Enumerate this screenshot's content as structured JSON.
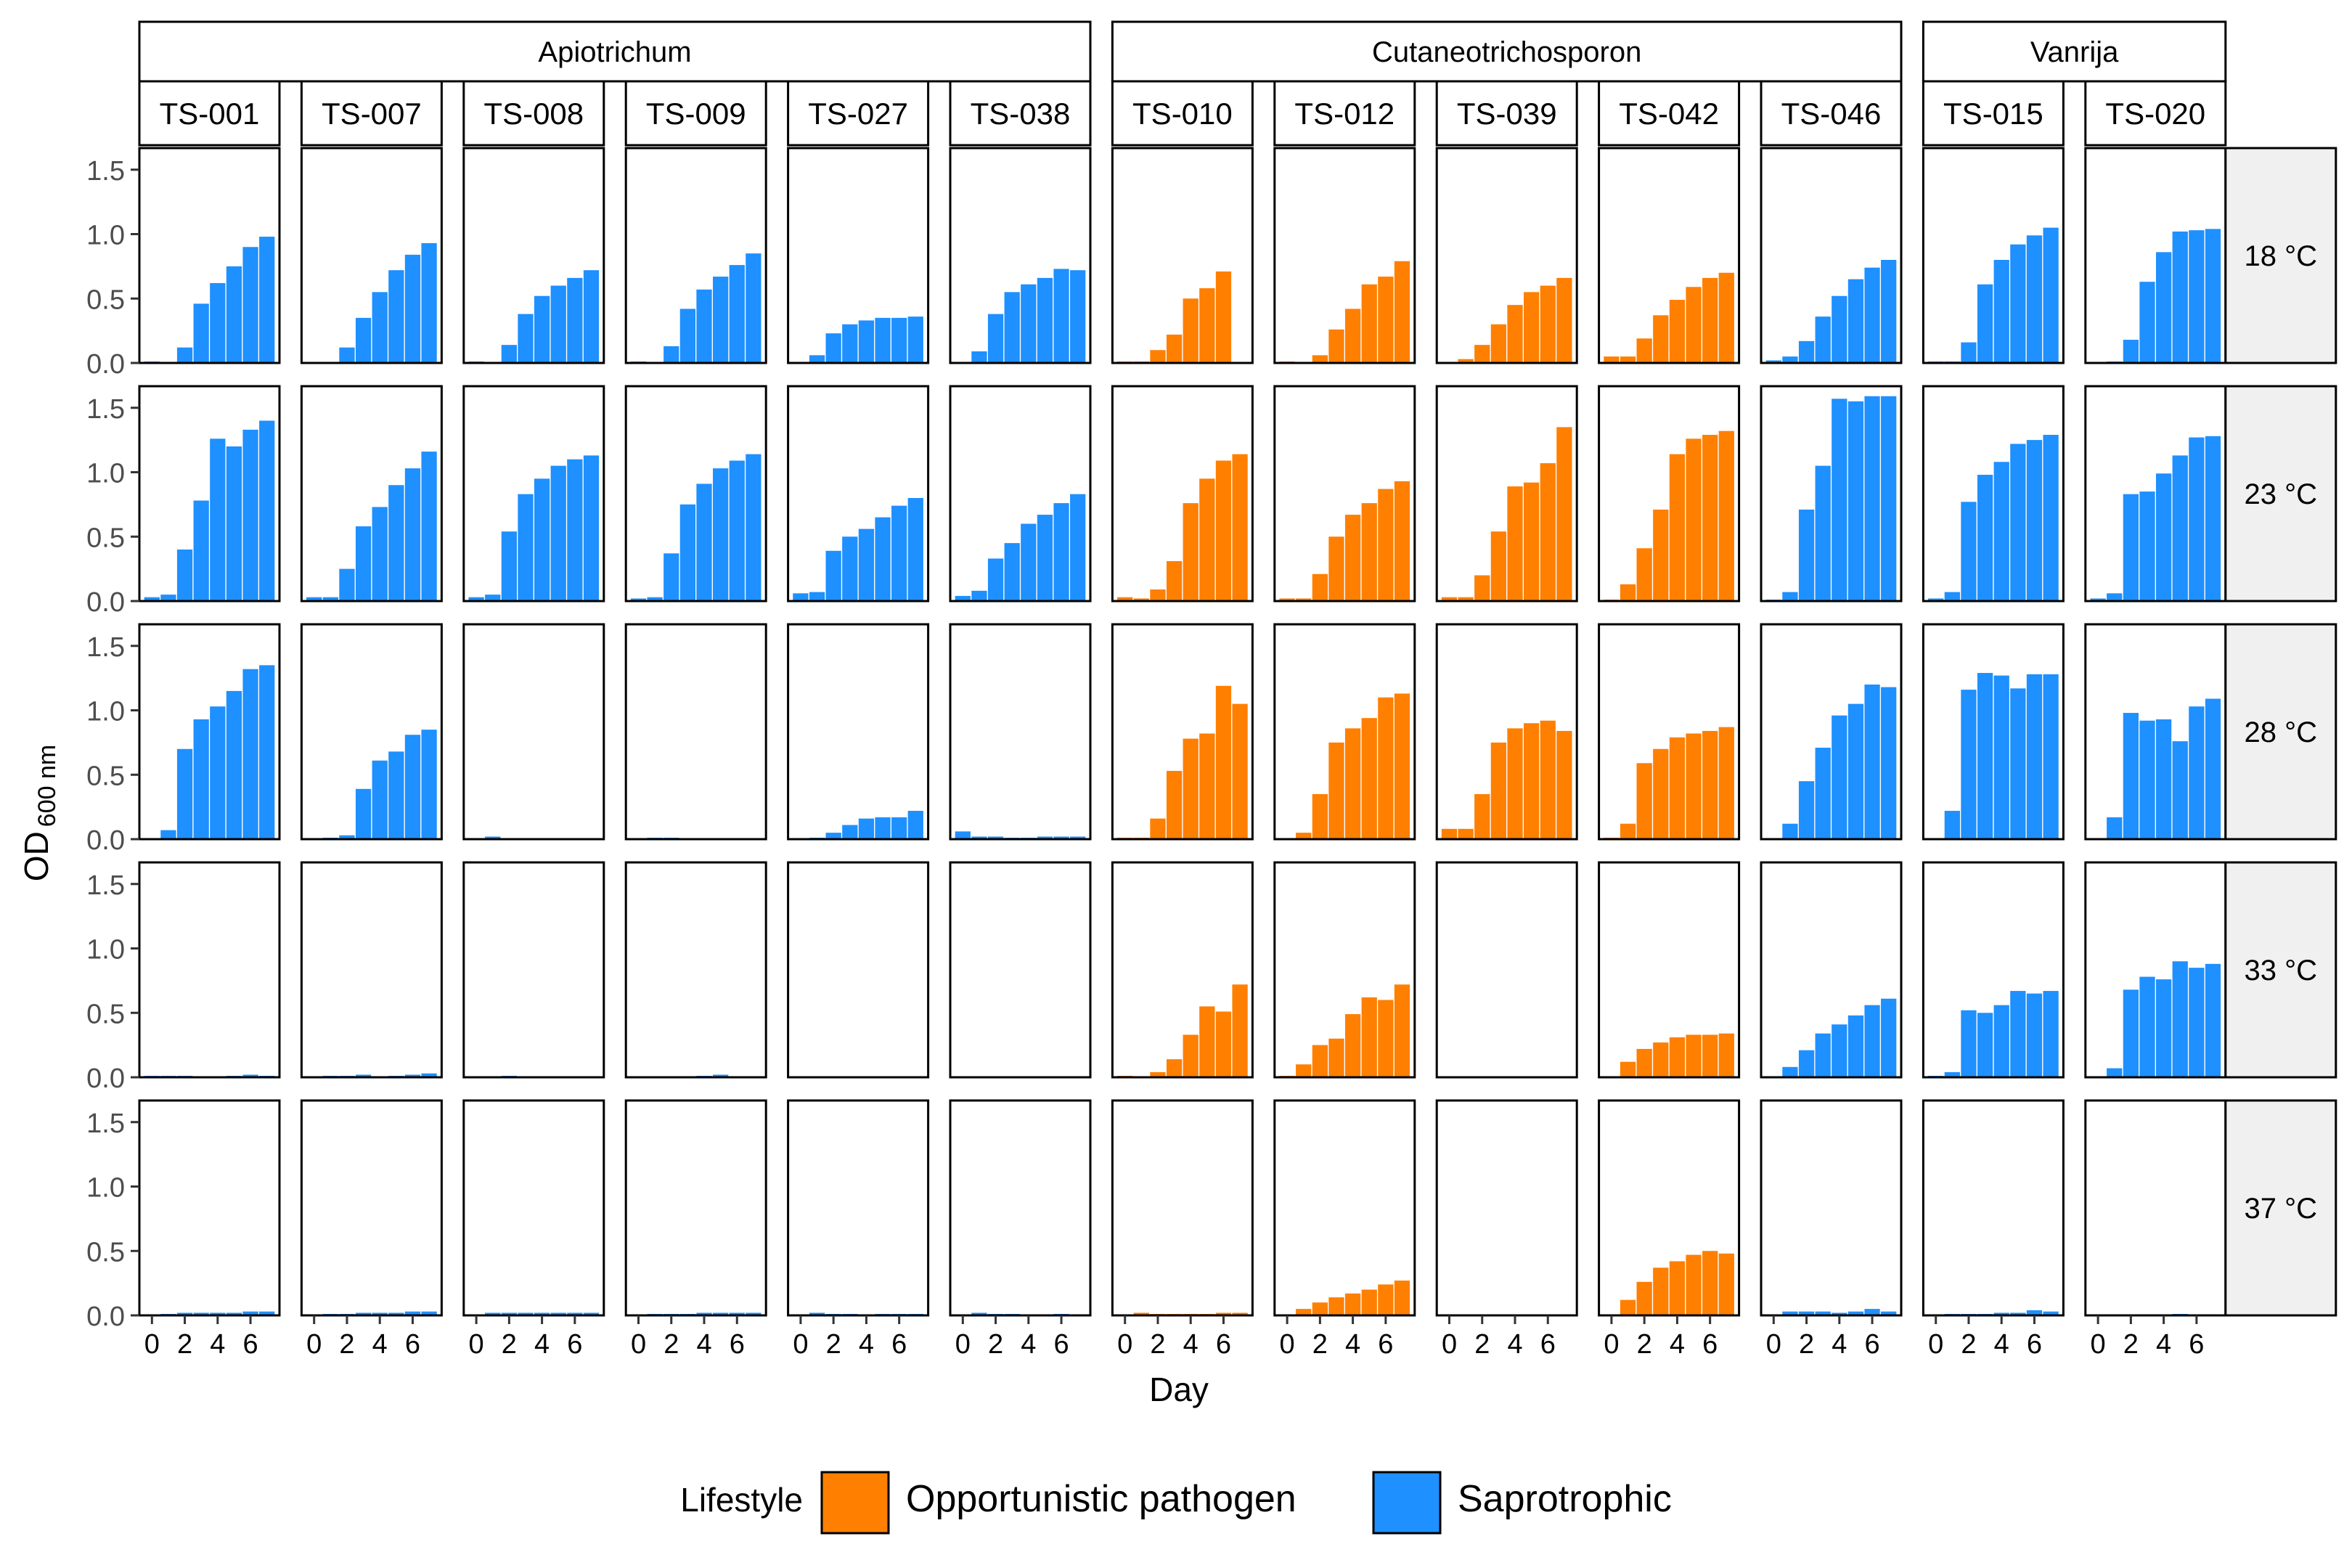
{
  "chart_data": {
    "type": "bar",
    "layout": "faceted-grid",
    "xlabel": "Day",
    "ylabel": "OD",
    "ylabel_subscript": "600 nm",
    "ylim": [
      0,
      1.6
    ],
    "yticks": [
      "0.0",
      "0.5",
      "1.0",
      "1.5"
    ],
    "ytick_values": [
      0,
      0.5,
      1.0,
      1.5
    ],
    "xticks": [
      "0",
      "2",
      "4",
      "6"
    ],
    "xtick_values": [
      0,
      2,
      4,
      6
    ],
    "days": [
      0,
      1,
      2,
      3,
      4,
      5,
      6,
      7
    ],
    "legend": {
      "title": "Lifestyle",
      "position": "bottom",
      "items": [
        {
          "label": "Opportunistic pathogen",
          "color": "#ff7f00"
        },
        {
          "label": "Saprotrophic",
          "color": "#1e90ff"
        }
      ]
    },
    "genera": [
      {
        "name": "Apiotrichum",
        "strains": [
          "TS-001",
          "TS-007",
          "TS-008",
          "TS-009",
          "TS-027",
          "TS-038"
        ]
      },
      {
        "name": "Cutaneotrichosporon",
        "strains": [
          "TS-010",
          "TS-012",
          "TS-039",
          "TS-042",
          "TS-046"
        ]
      },
      {
        "name": "Vanrija",
        "strains": [
          "TS-015",
          "TS-020"
        ]
      }
    ],
    "temperatures": [
      "18 °C",
      "23 °C",
      "28 °C",
      "33 °C",
      "37 °C"
    ],
    "strains": [
      {
        "id": "TS-001",
        "lifestyle": "Saprotrophic",
        "od": [
          [
            0.01,
            null,
            0.12,
            0.46,
            0.62,
            0.75,
            0.9,
            0.98
          ],
          [
            0.03,
            0.05,
            0.4,
            0.78,
            1.26,
            1.2,
            1.33,
            1.4
          ],
          [
            null,
            0.07,
            0.7,
            0.93,
            1.03,
            1.15,
            1.32,
            1.35
          ],
          [
            0.01,
            0.01,
            0.01,
            null,
            null,
            0.01,
            0.02,
            0.01
          ],
          [
            null,
            0.01,
            0.02,
            0.02,
            0.02,
            0.02,
            0.03,
            0.03
          ]
        ]
      },
      {
        "id": "TS-007",
        "lifestyle": "Saprotrophic",
        "od": [
          [
            null,
            null,
            0.12,
            0.35,
            0.55,
            0.72,
            0.84,
            0.93
          ],
          [
            0.03,
            0.03,
            0.25,
            0.58,
            0.73,
            0.9,
            1.03,
            1.16
          ],
          [
            null,
            0.01,
            0.03,
            0.39,
            0.61,
            0.68,
            0.81,
            0.85
          ],
          [
            null,
            0.01,
            0.01,
            0.02,
            null,
            0.01,
            0.02,
            0.03
          ],
          [
            null,
            0.01,
            0.01,
            0.02,
            0.02,
            0.02,
            0.03,
            0.03
          ]
        ]
      },
      {
        "id": "TS-008",
        "lifestyle": "Saprotrophic",
        "od": [
          [
            0.01,
            null,
            0.14,
            0.38,
            0.52,
            0.6,
            0.66,
            0.72
          ],
          [
            0.03,
            0.05,
            0.54,
            0.83,
            0.95,
            1.05,
            1.1,
            1.13
          ],
          [
            null,
            0.02,
            null,
            null,
            null,
            null,
            null,
            null
          ],
          [
            null,
            null,
            0.01,
            null,
            null,
            null,
            null,
            null
          ],
          [
            null,
            0.02,
            0.02,
            0.02,
            0.02,
            0.02,
            0.02,
            0.02
          ]
        ]
      },
      {
        "id": "TS-009",
        "lifestyle": "Saprotrophic",
        "od": [
          [
            0.01,
            null,
            0.13,
            0.42,
            0.57,
            0.67,
            0.76,
            0.85
          ],
          [
            0.02,
            0.03,
            0.37,
            0.75,
            0.91,
            1.03,
            1.09,
            1.14
          ],
          [
            null,
            0.01,
            0.01,
            null,
            null,
            null,
            null,
            null
          ],
          [
            null,
            null,
            null,
            null,
            0.01,
            0.02,
            null,
            null
          ],
          [
            null,
            0.01,
            0.01,
            0.01,
            0.02,
            0.02,
            0.02,
            0.02
          ]
        ]
      },
      {
        "id": "TS-027",
        "lifestyle": "Saprotrophic",
        "od": [
          [
            null,
            0.06,
            0.23,
            0.3,
            0.33,
            0.35,
            0.35,
            0.36
          ],
          [
            0.06,
            0.07,
            0.39,
            0.5,
            0.56,
            0.65,
            0.74,
            0.8
          ],
          [
            null,
            0.01,
            0.05,
            0.11,
            0.16,
            0.17,
            0.17,
            0.22
          ],
          [
            null,
            null,
            null,
            null,
            null,
            null,
            null,
            null
          ],
          [
            null,
            0.02,
            0.01,
            0.01,
            null,
            0.01,
            0.01,
            0.01
          ]
        ]
      },
      {
        "id": "TS-038",
        "lifestyle": "Saprotrophic",
        "od": [
          [
            null,
            0.09,
            0.38,
            0.55,
            0.61,
            0.66,
            0.73,
            0.72
          ],
          [
            0.04,
            0.08,
            0.33,
            0.45,
            0.6,
            0.67,
            0.76,
            0.83
          ],
          [
            0.06,
            0.02,
            0.02,
            0.01,
            0.01,
            0.02,
            0.02,
            0.02
          ],
          [
            null,
            null,
            null,
            null,
            null,
            null,
            null,
            null
          ],
          [
            null,
            0.02,
            0.01,
            0.01,
            null,
            null,
            0.01,
            null
          ]
        ]
      },
      {
        "id": "TS-010",
        "lifestyle": "Opportunistic pathogen",
        "od": [
          [
            0.01,
            0.01,
            0.1,
            0.22,
            0.5,
            0.58,
            0.71,
            null
          ],
          [
            0.03,
            0.02,
            0.09,
            0.31,
            0.76,
            0.95,
            1.09,
            1.14
          ],
          [
            0.01,
            0.01,
            0.16,
            0.53,
            0.78,
            0.82,
            1.19,
            1.05
          ],
          [
            0.01,
            null,
            0.04,
            0.14,
            0.33,
            0.55,
            0.51,
            0.72
          ],
          [
            null,
            0.02,
            0.01,
            0.01,
            0.01,
            0.01,
            0.02,
            0.02
          ]
        ]
      },
      {
        "id": "TS-012",
        "lifestyle": "Opportunistic pathogen",
        "od": [
          [
            0.01,
            null,
            0.06,
            0.26,
            0.42,
            0.61,
            0.67,
            0.79
          ],
          [
            0.02,
            0.02,
            0.21,
            0.5,
            0.67,
            0.76,
            0.87,
            0.93
          ],
          [
            null,
            0.05,
            0.35,
            0.75,
            0.86,
            0.94,
            1.1,
            1.13
          ],
          [
            0.01,
            0.1,
            0.25,
            0.3,
            0.49,
            0.62,
            0.6,
            0.72
          ],
          [
            null,
            0.05,
            0.1,
            0.14,
            0.17,
            0.2,
            0.24,
            0.27
          ]
        ]
      },
      {
        "id": "TS-039",
        "lifestyle": "Opportunistic pathogen",
        "od": [
          [
            null,
            0.03,
            0.14,
            0.3,
            0.45,
            0.55,
            0.6,
            0.66
          ],
          [
            0.03,
            0.03,
            0.2,
            0.54,
            0.89,
            0.92,
            1.07,
            1.35
          ],
          [
            0.08,
            0.08,
            0.35,
            0.75,
            0.86,
            0.9,
            0.92,
            0.84
          ],
          [
            null,
            null,
            null,
            null,
            null,
            null,
            null,
            null
          ],
          [
            null,
            null,
            null,
            null,
            null,
            null,
            null,
            null
          ]
        ]
      },
      {
        "id": "TS-042",
        "lifestyle": "Opportunistic pathogen",
        "od": [
          [
            0.05,
            0.05,
            0.19,
            0.37,
            0.49,
            0.59,
            0.66,
            0.7
          ],
          [
            0.01,
            0.13,
            0.41,
            0.71,
            1.14,
            1.26,
            1.29,
            1.32
          ],
          [
            0.01,
            0.12,
            0.59,
            0.7,
            0.79,
            0.82,
            0.84,
            0.87
          ],
          [
            null,
            0.12,
            0.22,
            0.27,
            0.31,
            0.33,
            0.33,
            0.34
          ],
          [
            null,
            0.12,
            0.26,
            0.37,
            0.42,
            0.47,
            0.5,
            0.48
          ]
        ]
      },
      {
        "id": "TS-046",
        "lifestyle": "Saprotrophic",
        "od": [
          [
            0.02,
            0.05,
            0.17,
            0.36,
            0.52,
            0.65,
            0.74,
            0.8
          ],
          [
            0.01,
            0.07,
            0.71,
            1.05,
            1.57,
            1.55,
            1.59,
            1.59
          ],
          [
            null,
            0.12,
            0.45,
            0.71,
            0.96,
            1.05,
            1.2,
            1.18
          ],
          [
            null,
            0.08,
            0.21,
            0.34,
            0.41,
            0.48,
            0.56,
            0.61
          ],
          [
            null,
            0.03,
            0.03,
            0.03,
            0.02,
            0.03,
            0.05,
            0.03
          ]
        ]
      },
      {
        "id": "TS-015",
        "lifestyle": "Saprotrophic",
        "od": [
          [
            0.01,
            0.01,
            0.16,
            0.61,
            0.8,
            0.92,
            0.99,
            1.05
          ],
          [
            0.02,
            0.07,
            0.77,
            0.98,
            1.08,
            1.22,
            1.25,
            1.29
          ],
          [
            null,
            0.22,
            1.16,
            1.29,
            1.27,
            1.17,
            1.28,
            1.28
          ],
          [
            0.01,
            0.04,
            0.52,
            0.5,
            0.56,
            0.67,
            0.65,
            0.67
          ],
          [
            null,
            0.01,
            0.01,
            0.01,
            0.02,
            0.02,
            0.04,
            0.03
          ]
        ]
      },
      {
        "id": "TS-020",
        "lifestyle": "Saprotrophic",
        "od": [
          [
            null,
            0.01,
            0.18,
            0.63,
            0.86,
            1.02,
            1.03,
            1.04
          ],
          [
            0.02,
            0.06,
            0.83,
            0.85,
            0.99,
            1.13,
            1.27,
            1.28
          ],
          [
            null,
            0.17,
            0.98,
            0.92,
            0.93,
            0.76,
            1.03,
            1.09
          ],
          [
            null,
            0.07,
            0.68,
            0.78,
            0.76,
            0.9,
            0.85,
            0.88
          ],
          [
            null,
            null,
            null,
            null,
            null,
            0.01,
            null,
            null
          ]
        ]
      }
    ]
  }
}
